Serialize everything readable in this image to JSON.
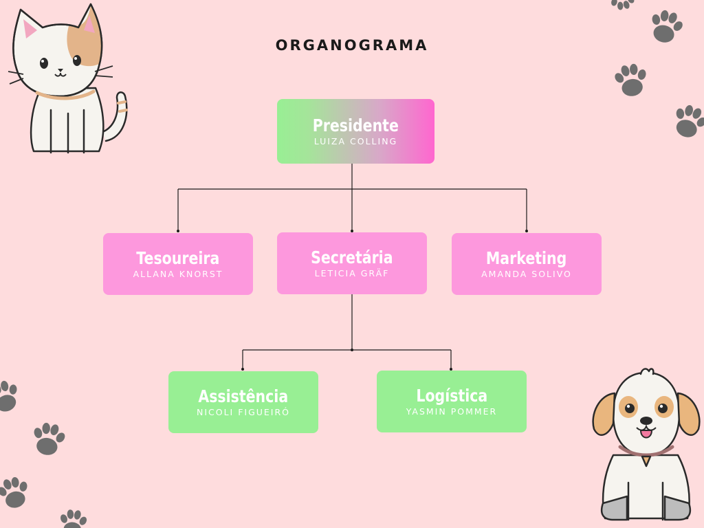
{
  "title": "ORGANOGRAMA",
  "colors": {
    "background": "#fedcdd",
    "pink_box": "#fd98dd",
    "green_box": "#98ef94",
    "gradient_start": "#98ef94",
    "gradient_end": "#ff66cf",
    "paw": "#6e6e6e"
  },
  "nodes": {
    "presidente": {
      "role": "Presidente",
      "name": "LUIZA COLLING"
    },
    "tesoureira": {
      "role": "Tesoureira",
      "name": "ALLANA KNORST"
    },
    "secretaria": {
      "role": "Secretária",
      "name": "LETICIA GRÄF"
    },
    "marketing": {
      "role": "Marketing",
      "name": "AMANDA SOLIVO"
    },
    "assistencia": {
      "role": "Assistência",
      "name": "NICOLI FIGUEIRÓ"
    },
    "logistica": {
      "role": "Logística",
      "name": "YASMIN POMMER"
    }
  },
  "decorations": [
    "cat-illustration",
    "dog-illustration",
    "paw-print-icon"
  ]
}
